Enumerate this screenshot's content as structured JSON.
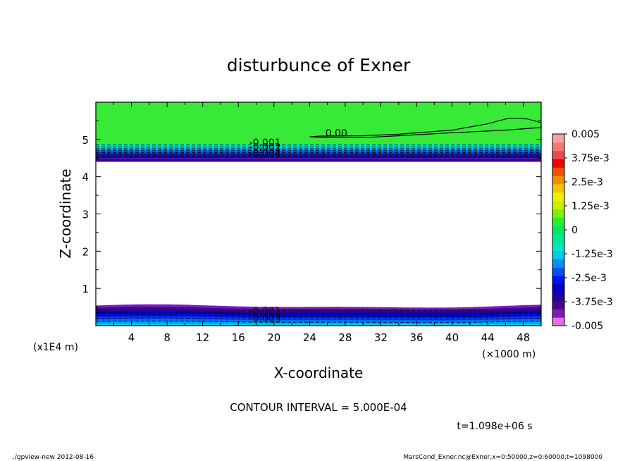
{
  "chart_data": {
    "type": "contour",
    "title": "disturbunce of Exner",
    "xlabel": "X-coordinate",
    "ylabel": "Z-coordinate",
    "x_unit": "(×1000 m)",
    "y_unit": "(x1E4 m)",
    "xlim": [
      0,
      50
    ],
    "ylim": [
      0,
      6
    ],
    "x_ticks": [
      4,
      8,
      12,
      16,
      20,
      24,
      28,
      32,
      36,
      40,
      44,
      48
    ],
    "y_ticks": [
      1,
      2,
      3,
      4,
      5
    ],
    "contour_interval_text": "CONTOUR INTERVAL = 5.000E-04",
    "time_text": "t=1.098e+06 s",
    "contour_labels": [
      {
        "text": "0.00",
        "x": 27,
        "z": 5.08
      },
      {
        "text": "-0.001",
        "x": 19,
        "z": 4.83
      },
      {
        "text": "-0.002",
        "x": 19,
        "z": 4.7
      },
      {
        "text": "-0.004",
        "x": 19,
        "z": 4.53
      },
      {
        "text": "-0.001",
        "x": 19,
        "z": 0.3
      },
      {
        "text": "-0.003",
        "x": 19,
        "z": 0.1
      }
    ],
    "colorbar": {
      "labels": [
        "0.005",
        "3.75e-3",
        "2.5e-3",
        "1.25e-3",
        "0",
        "-1.25e-3",
        "-2.5e-3",
        "-3.75e-3",
        "-0.005"
      ],
      "min": -0.005,
      "max": 0.005,
      "colors": [
        "#e070e0",
        "#7e18b8",
        "#4a0090",
        "#200098",
        "#0000c8",
        "#0010f0",
        "#0050f0",
        "#0090f0",
        "#00c8e8",
        "#00e8c0",
        "#00e890",
        "#00e860",
        "#28f028",
        "#80f000",
        "#c8f000",
        "#f0f000",
        "#f0c800",
        "#f09000",
        "#f05000",
        "#f00000",
        "#f04848",
        "#f07878",
        "#f8a0a0"
      ]
    },
    "grid": false,
    "legend": "right (colorbar)"
  },
  "footer": {
    "left": "./gpview-new  2012-08-16",
    "right": "MarsCond_Exner.nc@Exner,x=0:50000,z=0:60000,t=1098000"
  }
}
